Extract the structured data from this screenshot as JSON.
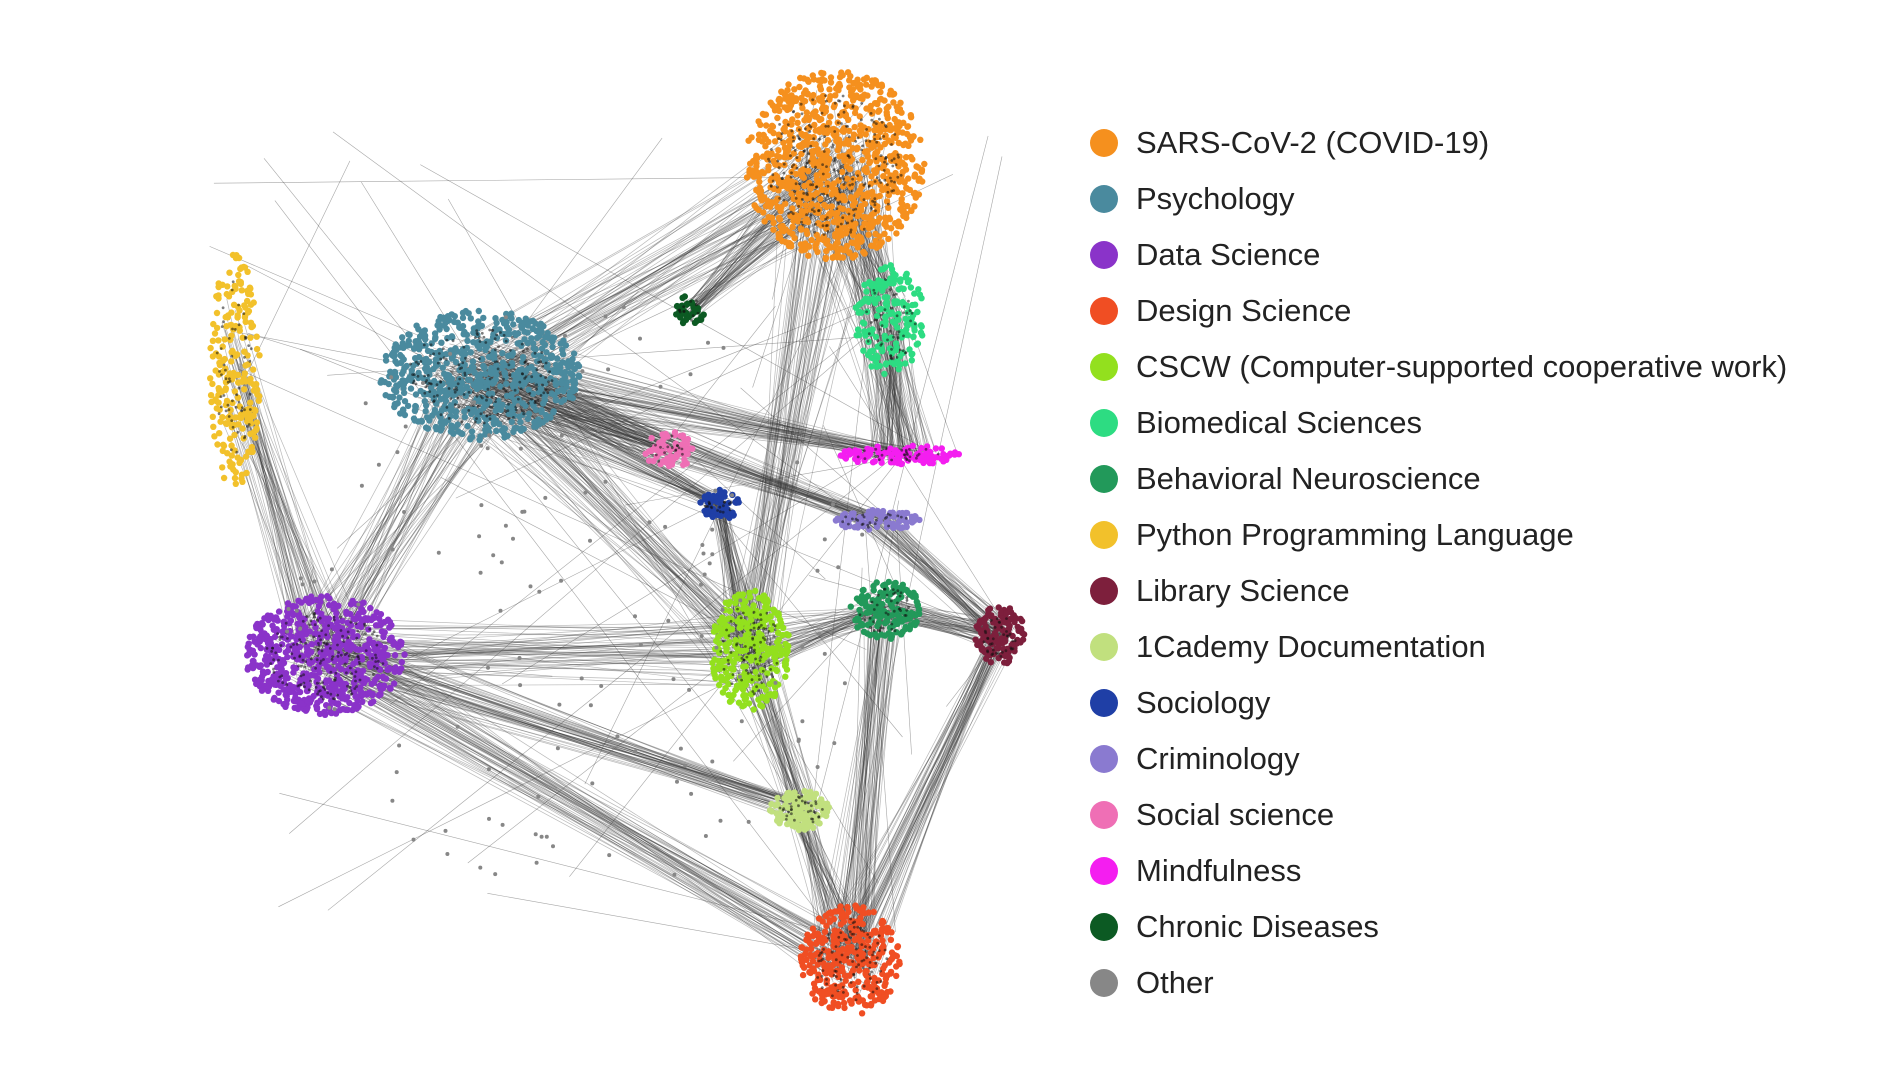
{
  "legend": [
    {
      "label": "SARS-CoV-2 (COVID-19)",
      "color": "#f5901e"
    },
    {
      "label": "Psychology",
      "color": "#4a8a9e"
    },
    {
      "label": "Data Science",
      "color": "#8a33c9"
    },
    {
      "label": "Design Science",
      "color": "#f04e23"
    },
    {
      "label": "CSCW (Computer-supported cooperative work)",
      "color": "#93e01e"
    },
    {
      "label": "Biomedical Sciences",
      "color": "#2ddc82"
    },
    {
      "label": "Behavioral Neuroscience",
      "color": "#22995a"
    },
    {
      "label": "Python Programming Language",
      "color": "#f2c12b"
    },
    {
      "label": "Library Science",
      "color": "#7d1f3c"
    },
    {
      "label": "1Cademy Documentation",
      "color": "#c1e07e"
    },
    {
      "label": "Sociology",
      "color": "#1f3fa6"
    },
    {
      "label": "Criminology",
      "color": "#8a7ad0"
    },
    {
      "label": "Social science",
      "color": "#ef6fb5"
    },
    {
      "label": "Mindfulness",
      "color": "#f41ef0"
    },
    {
      "label": "Chronic Diseases",
      "color": "#0c5a23"
    },
    {
      "label": "Other",
      "color": "#878787"
    }
  ],
  "edge_color": "#3a3a3a"
}
